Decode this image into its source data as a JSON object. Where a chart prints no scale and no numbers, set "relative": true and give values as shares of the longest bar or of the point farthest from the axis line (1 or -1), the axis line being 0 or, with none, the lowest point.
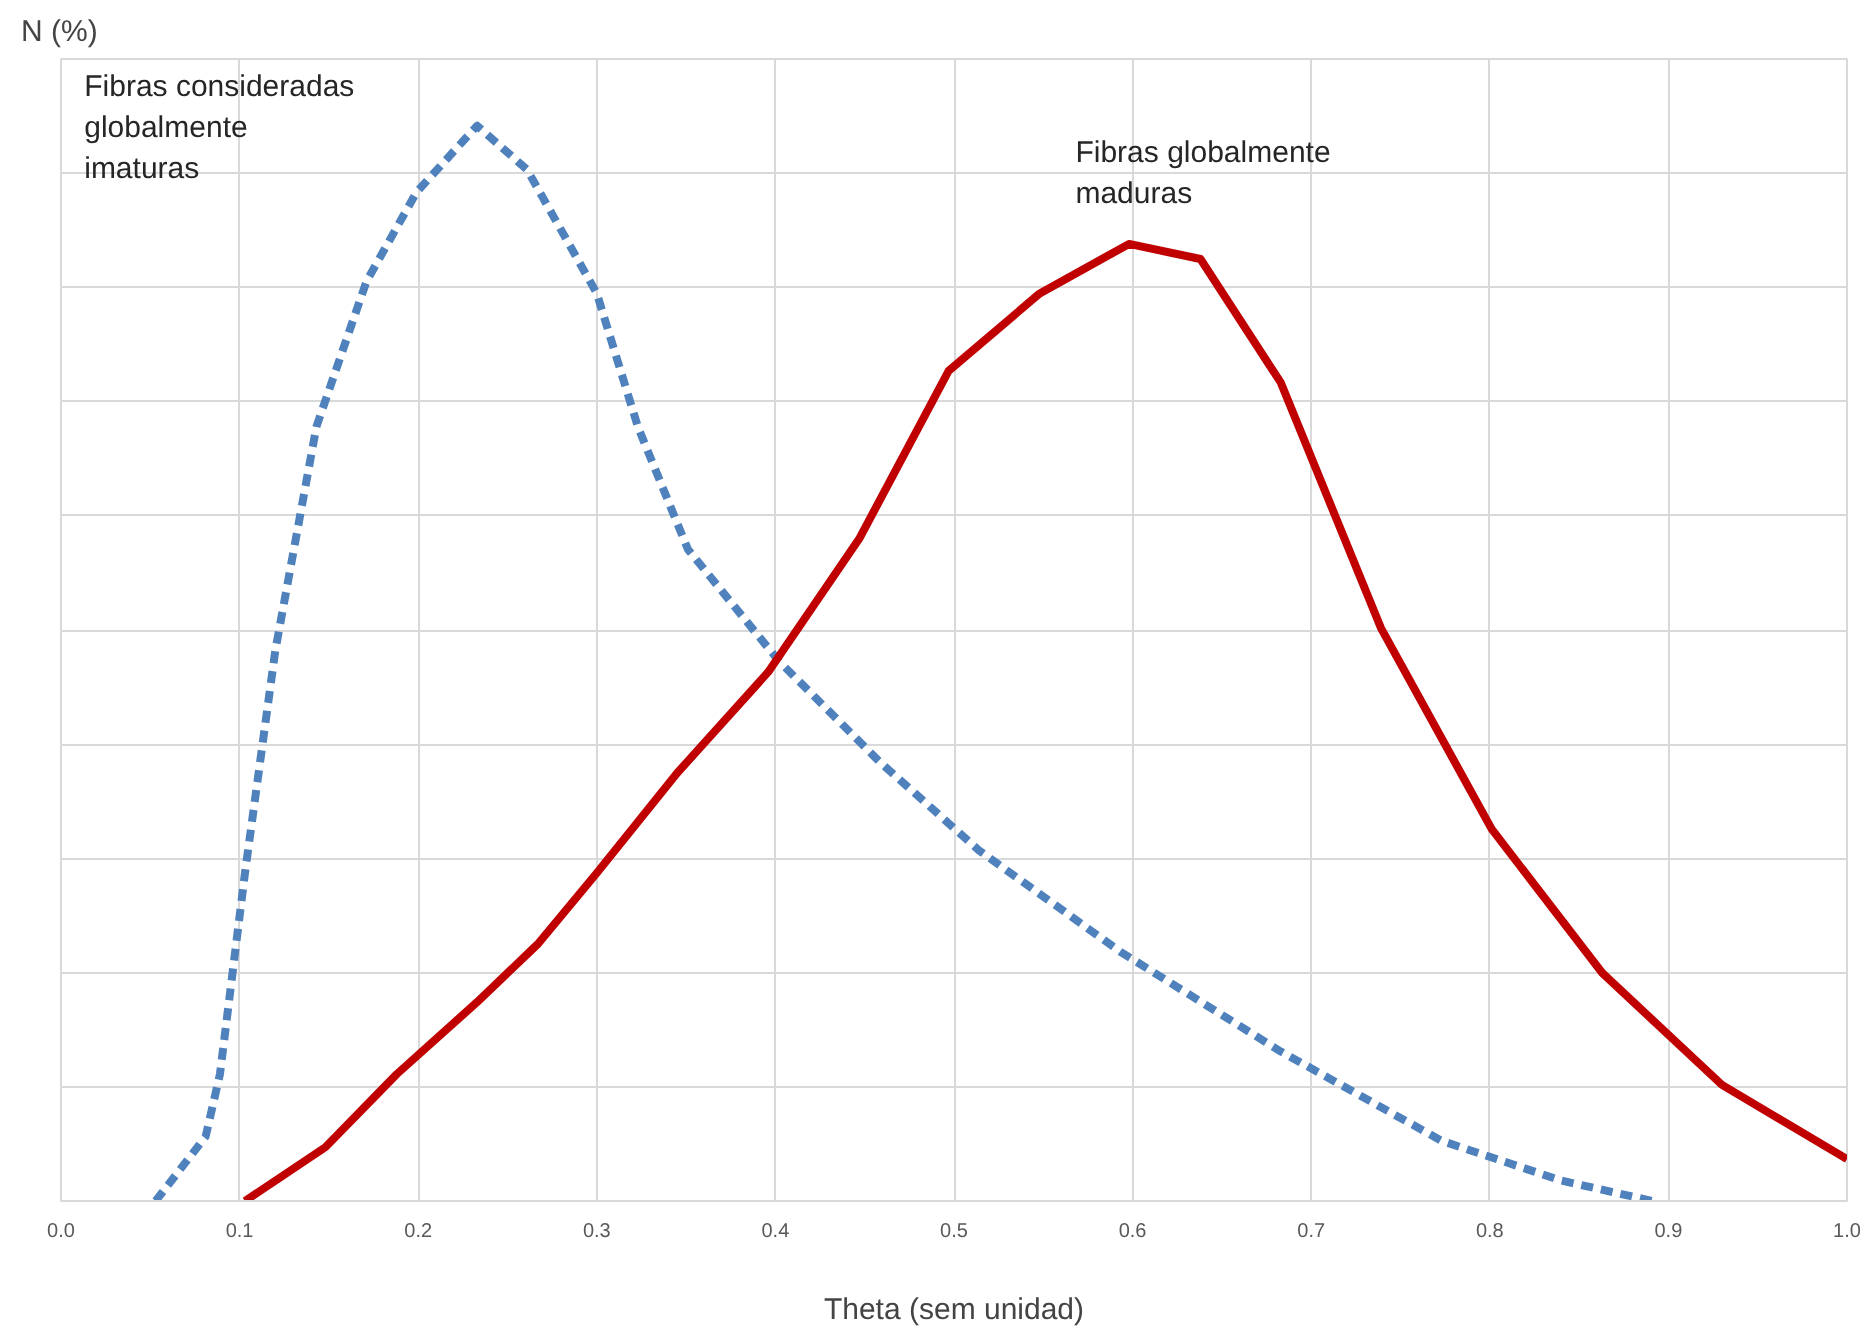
{
  "chart_data": {
    "type": "line",
    "relative": true,
    "ylabel": "N (%)",
    "xlabel": "Theta (sem unidad)",
    "xlim": [
      0,
      1
    ],
    "xticks": [
      {
        "value": 0,
        "label": "0.0"
      },
      {
        "value": 0.1,
        "label": "0.1"
      },
      {
        "value": 0.2,
        "label": "0.2"
      },
      {
        "value": 0.3,
        "label": "0.3"
      },
      {
        "value": 0.4,
        "label": "0.4"
      },
      {
        "value": 0.5,
        "label": "0.5"
      },
      {
        "value": 0.6,
        "label": "0.6"
      },
      {
        "value": 0.7,
        "label": "0.7"
      },
      {
        "value": 0.8,
        "label": "0.8"
      },
      {
        "value": 0.9,
        "label": "0.9"
      },
      {
        "value": 1,
        "label": "1.0"
      }
    ],
    "grid": true,
    "marker": "none",
    "series": [
      {
        "name": "Fibras consideradas\nglobalmente\nimaturas",
        "color": "#4f81bd",
        "line_style": "dashed",
        "x": [
          0.053,
          0.081,
          0.089,
          0.103,
          0.12,
          0.143,
          0.171,
          0.199,
          0.233,
          0.261,
          0.3,
          0.323,
          0.351,
          0.402,
          0.458,
          0.514,
          0.593,
          0.683,
          0.773,
          0.84,
          0.891
        ],
        "values": [
          0,
          0.06,
          0.118,
          0.305,
          0.512,
          0.72,
          0.855,
          0.938,
          1.0,
          0.959,
          0.844,
          0.72,
          0.606,
          0.502,
          0.409,
          0.326,
          0.232,
          0.139,
          0.056,
          0.019,
          0
        ]
      },
      {
        "name": "Fibras globalmente\nmaduras",
        "color": "#c00000",
        "line_style": "solid",
        "x": [
          0.103,
          0.148,
          0.188,
          0.233,
          0.267,
          0.3,
          0.345,
          0.396,
          0.447,
          0.497,
          0.548,
          0.598,
          0.638,
          0.683,
          0.739,
          0.801,
          0.863,
          0.93,
          1.0
        ],
        "values": [
          0,
          0.05,
          0.118,
          0.185,
          0.239,
          0.305,
          0.398,
          0.492,
          0.616,
          0.772,
          0.844,
          0.89,
          0.876,
          0.761,
          0.533,
          0.346,
          0.212,
          0.108,
          0.039
        ]
      }
    ]
  }
}
